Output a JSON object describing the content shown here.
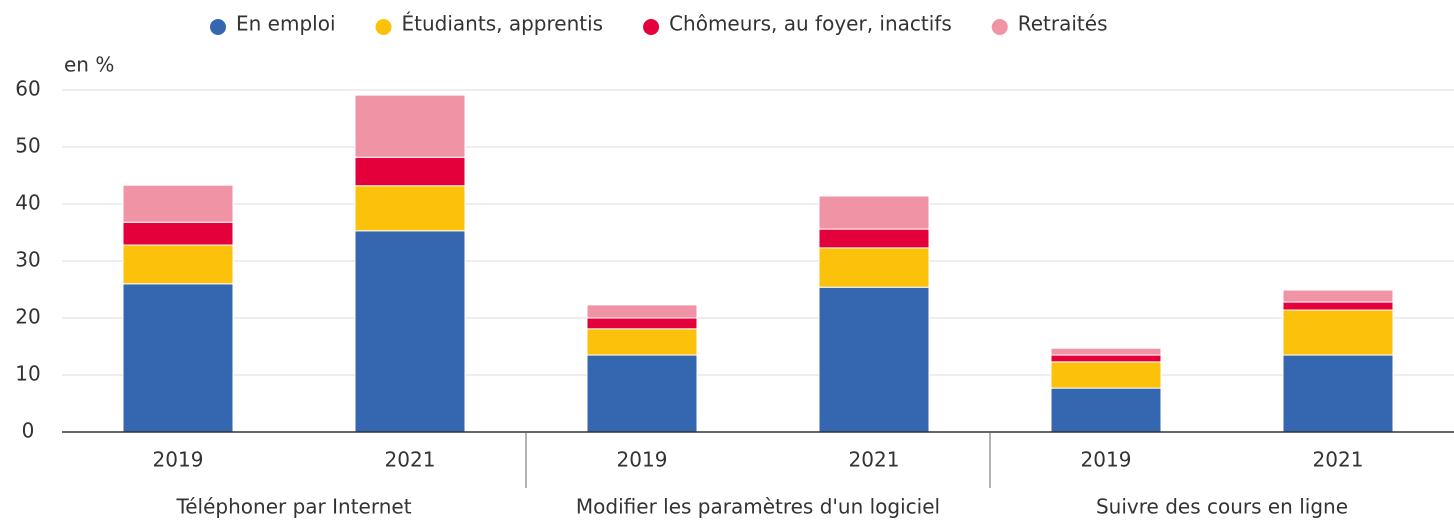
{
  "chart_data": {
    "type": "stacked_bar",
    "y_label": "en %",
    "categories": [
      "2019",
      "2021",
      "2019",
      "2021",
      "2019",
      "2021"
    ],
    "groups": [
      "Téléphoner par Internet",
      "Modifier les paramètres d'un logiciel",
      "Suivre des cours en ligne"
    ],
    "series": [
      {
        "name": "En emploi",
        "color": "#3467b0",
        "values": [
          26.0,
          35.3,
          13.5,
          25.4,
          7.7,
          13.5
        ]
      },
      {
        "name": "Étudiants, apprentis",
        "color": "#fcc10a",
        "values": [
          6.8,
          7.9,
          4.6,
          6.9,
          4.6,
          7.9
        ]
      },
      {
        "name": "Chômeurs, au foyer, inactifs",
        "color": "#e4003b",
        "values": [
          4.0,
          5.0,
          1.9,
          3.3,
          1.2,
          1.4
        ]
      },
      {
        "name": "Retraités",
        "color": "#f093a5",
        "values": [
          6.5,
          10.9,
          2.3,
          5.8,
          1.2,
          2.1
        ]
      }
    ],
    "ylim": [
      0,
      60
    ],
    "yticks": [
      0,
      10,
      20,
      30,
      40,
      50,
      60
    ],
    "grid": true,
    "legend": "top"
  }
}
